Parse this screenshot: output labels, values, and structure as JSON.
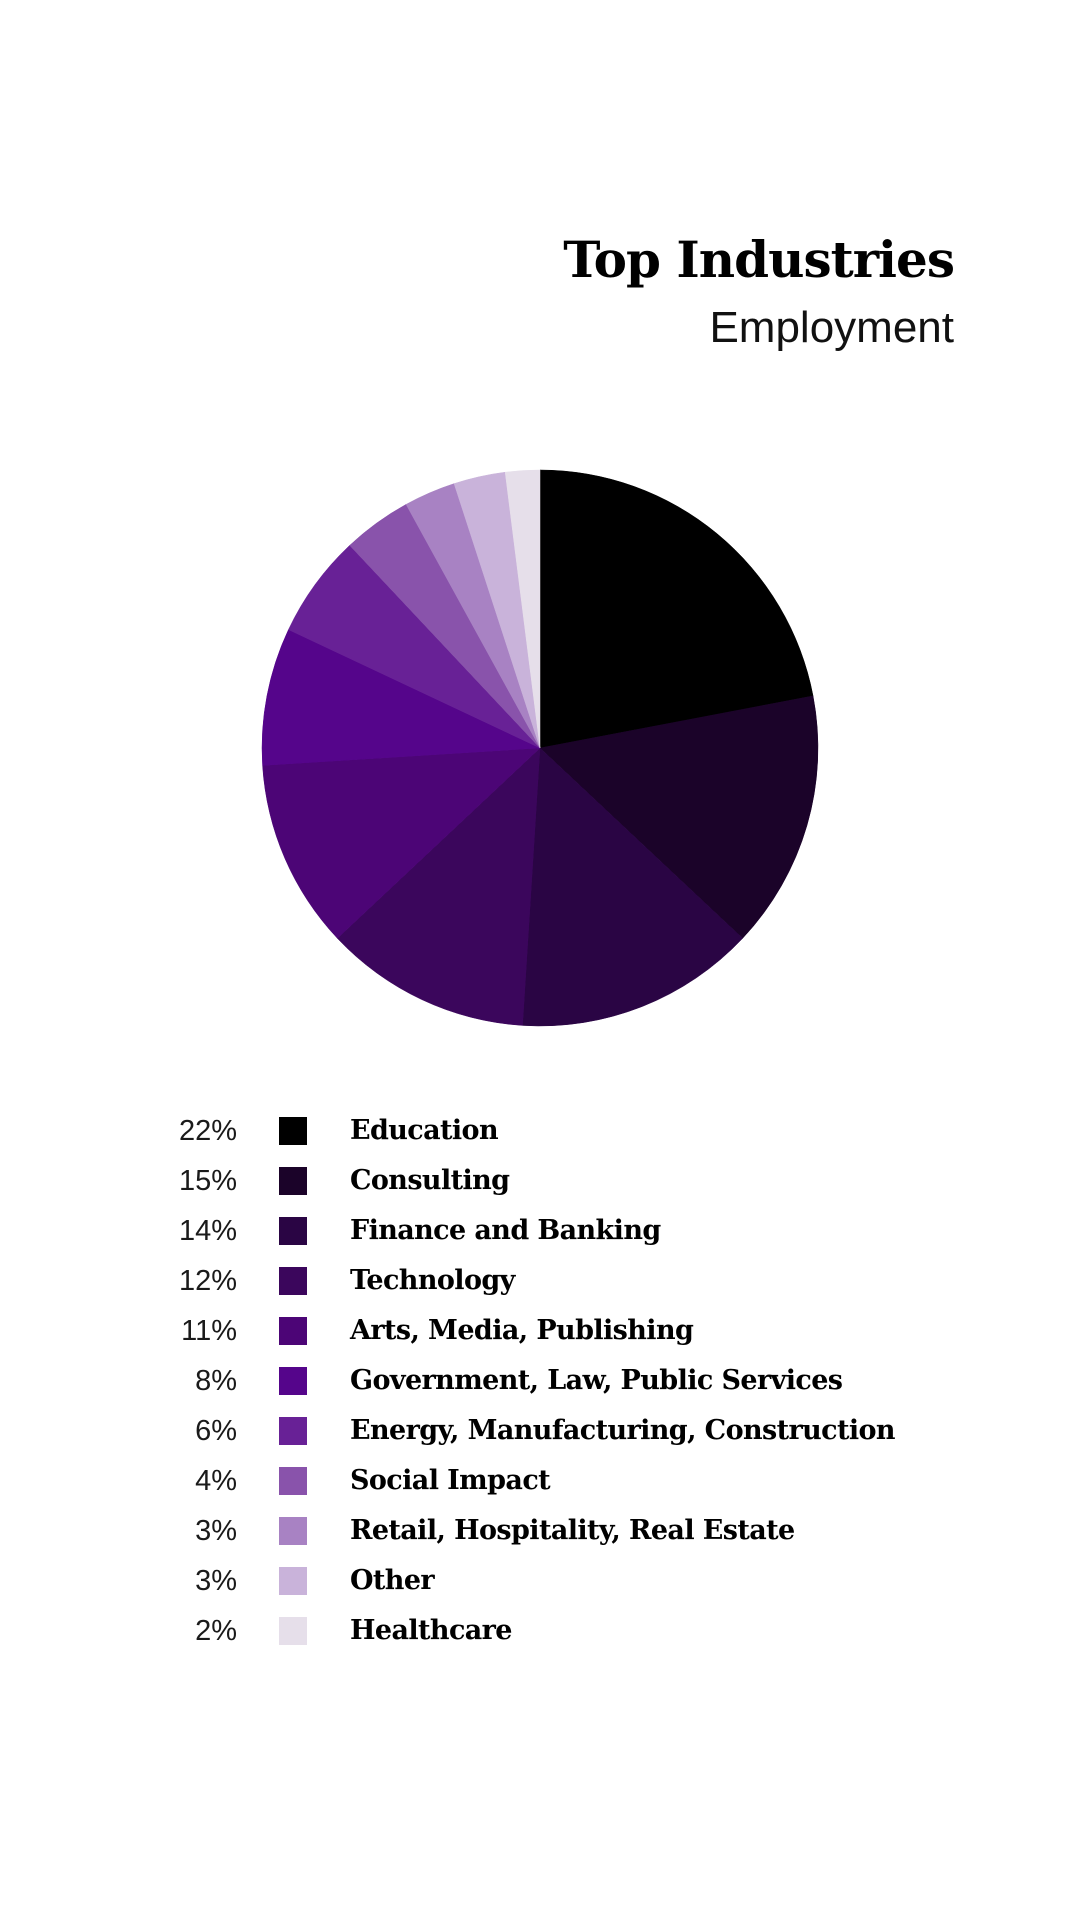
{
  "header": {
    "title": "Top Industries",
    "subtitle": "Employment"
  },
  "chart_data": {
    "type": "pie",
    "title": "Top Industries",
    "subtitle": "Employment",
    "start_angle": "12 o'clock",
    "direction": "clockwise",
    "legend_position": "bottom",
    "categories": [
      "Education",
      "Consulting",
      "Finance and Banking",
      "Technology",
      "Arts, Media, Publishing",
      "Government, Law, Public Services",
      "Energy, Manufacturing, Construction",
      "Social Impact",
      "Retail, Hospitality, Real Estate",
      "Other",
      "Healthcare"
    ],
    "values": [
      22,
      15,
      14,
      12,
      11,
      8,
      6,
      4,
      3,
      3,
      2
    ],
    "colors": [
      "#000000",
      "#1b0329",
      "#2a0544",
      "#3b065c",
      "#4c0576",
      "#55058b",
      "#682196",
      "#8953ab",
      "#a882c3",
      "#c9b3da",
      "#e6dfea"
    ]
  },
  "legend": {
    "items": [
      {
        "pct": "22%",
        "label": "Education",
        "color": "#000000"
      },
      {
        "pct": "15%",
        "label": "Consulting",
        "color": "#1b0329"
      },
      {
        "pct": "14%",
        "label": "Finance and Banking",
        "color": "#2a0544"
      },
      {
        "pct": "12%",
        "label": "Technology",
        "color": "#3b065c"
      },
      {
        "pct": "11%",
        "label": "Arts, Media, Publishing",
        "color": "#4c0576"
      },
      {
        "pct": "8%",
        "label": "Government, Law, Public Services",
        "color": "#55058b"
      },
      {
        "pct": "6%",
        "label": "Energy, Manufacturing, Construction",
        "color": "#682196"
      },
      {
        "pct": "4%",
        "label": "Social Impact",
        "color": "#8953ab"
      },
      {
        "pct": "3%",
        "label": "Retail, Hospitality, Real Estate",
        "color": "#a882c3"
      },
      {
        "pct": "3%",
        "label": "Other",
        "color": "#c9b3da"
      },
      {
        "pct": "2%",
        "label": "Healthcare",
        "color": "#e6dfea"
      }
    ]
  }
}
